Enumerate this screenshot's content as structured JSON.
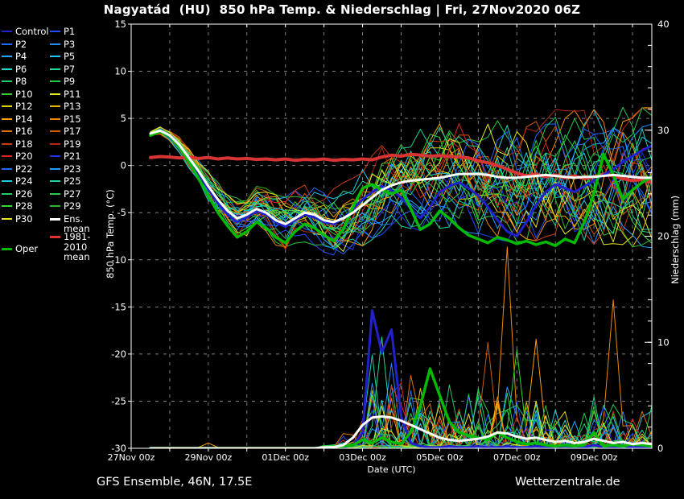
{
  "title": "Nagyatád  (HU)  850 hPa Temp. & Niederschlag | Fri, 27Nov2020 06Z",
  "footer": {
    "left": "GFS Ensemble, 46N, 17.5E",
    "right": "Wetterzentrale.de"
  },
  "axes": {
    "left": {
      "label": "850 hPa Temp. (°C)",
      "ticks": [
        15,
        10,
        5,
        0,
        -5,
        -10,
        -15,
        -20,
        -25,
        -30
      ],
      "range": [
        -30,
        15
      ]
    },
    "right": {
      "label": "Niederschlag (mm)",
      "ticks": [
        0,
        10,
        20,
        30,
        40
      ],
      "minor_step": 2,
      "range": [
        0,
        40
      ]
    },
    "x": {
      "label": "Date (UTC)",
      "tick_labels": [
        "27Nov 00z",
        "29Nov 00z",
        "01Dec 00z",
        "03Dec 00z",
        "05Dec 00z",
        "07Dec 00z",
        "09Dec 00z"
      ],
      "days_span": 13.5,
      "grid_every_days": 1,
      "label_every_days": 2
    }
  },
  "legend": {
    "columns": [
      [
        {
          "label": "Control",
          "color": "#2222cc"
        },
        {
          "label": "P2",
          "color": "#1f6aff"
        },
        {
          "label": "P4",
          "color": "#1fa8ff"
        },
        {
          "label": "P6",
          "color": "#1fd8c8"
        },
        {
          "label": "P8",
          "color": "#1fcc66"
        },
        {
          "label": "P10",
          "color": "#33cc33"
        },
        {
          "label": "P12",
          "color": "#d8d000"
        },
        {
          "label": "P14",
          "color": "#ff9f00"
        },
        {
          "label": "P16",
          "color": "#e07000"
        },
        {
          "label": "P18",
          "color": "#cc3c10"
        },
        {
          "label": "P20",
          "color": "#dd2222"
        },
        {
          "label": "P22",
          "color": "#1f6aff"
        },
        {
          "label": "P24",
          "color": "#1fcadd"
        },
        {
          "label": "P26",
          "color": "#22cc66"
        },
        {
          "label": "P28",
          "color": "#30d830"
        },
        {
          "label": "P30",
          "color": "#e8e820"
        },
        {
          "label": "Oper",
          "color": "#00bb00",
          "thick": true,
          "dy": 22
        }
      ],
      [
        {
          "label": "P1",
          "color": "#1f4fff"
        },
        {
          "label": "P3",
          "color": "#1f8cff"
        },
        {
          "label": "P5",
          "color": "#1fc8f0"
        },
        {
          "label": "P7",
          "color": "#1fd898"
        },
        {
          "label": "P9",
          "color": "#22cc44"
        },
        {
          "label": "P11",
          "color": "#e8e820"
        },
        {
          "label": "P13",
          "color": "#e8b400"
        },
        {
          "label": "P15",
          "color": "#f08800"
        },
        {
          "label": "P17",
          "color": "#cc5c00"
        },
        {
          "label": "P19",
          "color": "#b42814"
        },
        {
          "label": "P21",
          "color": "#2233ee"
        },
        {
          "label": "P23",
          "color": "#1f9fff"
        },
        {
          "label": "P25",
          "color": "#1fd0a0"
        },
        {
          "label": "P27",
          "color": "#28c848"
        },
        {
          "label": "P29",
          "color": "#28b828"
        },
        {
          "label": "Ens. mean",
          "color": "#ffffff",
          "thick": true
        },
        {
          "label": "1981-2010 mean",
          "color": "#e03030",
          "thick": true,
          "dy": 7,
          "wrap": true
        }
      ]
    ]
  },
  "chart_data": {
    "type": "line",
    "title": "Nagyatád (HU) 850 hPa Temp. & Niederschlag",
    "run": "Fri, 27Nov2020 06Z",
    "xlabel": "Date (UTC)",
    "ylabel_left": "850 hPa Temp. (°C)",
    "ylabel_right": "Niederschlag (mm)",
    "ylim_left": [
      -30,
      15
    ],
    "ylim_right": [
      0,
      40
    ],
    "grid": "dashed, every 5 °C horizontally and every 1 day vertically",
    "legend_position": "outside-left",
    "x_start_hour": 12,
    "x_step_hours": 6,
    "n_points": 53,
    "series": [
      {
        "name": "1981-2010 mean",
        "axis": "temp",
        "color": "#d93434",
        "width": 4,
        "values": [
          0.85,
          0.95,
          0.9,
          0.8,
          0.9,
          0.75,
          0.85,
          0.7,
          0.8,
          0.7,
          0.75,
          0.65,
          0.7,
          0.6,
          0.7,
          0.55,
          0.65,
          0.6,
          0.7,
          0.55,
          0.65,
          0.6,
          0.7,
          0.6,
          0.9,
          1.1,
          1.0,
          1.2,
          1.1,
          1.0,
          1.05,
          0.95,
          0.9,
          0.8,
          0.5,
          0.3,
          0.0,
          -0.4,
          -0.8,
          -1.1,
          -0.9,
          -1.2,
          -1.0,
          -1.3,
          -1.1,
          -1.4,
          -1.2,
          -0.9,
          -1.1,
          -1.4,
          -1.6,
          -1.5,
          -1.8
        ]
      },
      {
        "name": "Control temp",
        "axis": "temp",
        "color": "#2222cc",
        "width": 3,
        "values": [
          3.3,
          3.6,
          3.0,
          2.1,
          0.6,
          -0.9,
          -2.5,
          -4.0,
          -5.2,
          -6.0,
          -5.5,
          -4.8,
          -5.2,
          -6.0,
          -6.5,
          -5.8,
          -5.2,
          -5.5,
          -6.0,
          -6.2,
          -5.6,
          -4.6,
          -3.6,
          -2.8,
          -2.2,
          -2.6,
          -3.4,
          -4.6,
          -5.6,
          -4.4,
          -2.8,
          -2.2,
          -1.8,
          -2.4,
          -3.2,
          -4.4,
          -5.8,
          -7.0,
          -7.5,
          -6.0,
          -4.2,
          -2.8,
          -2.0,
          -2.4,
          -2.8,
          -2.2,
          -1.6,
          -1.0,
          -0.4,
          0.4,
          1.0,
          1.6,
          2.1
        ]
      },
      {
        "name": "Control precip",
        "axis": "precip",
        "color": "#2222cc",
        "width": 3,
        "values": [
          0,
          0,
          0,
          0,
          0,
          0,
          0,
          0,
          0,
          0,
          0,
          0,
          0,
          0,
          0,
          0,
          0,
          0,
          0,
          0,
          0.1,
          0.3,
          1.5,
          13.0,
          9.0,
          11.2,
          3.0,
          0.5,
          0.2,
          0.1,
          0.1,
          0.2,
          0.1,
          0.1,
          0.2,
          0.1,
          0.1,
          0.2,
          0.1,
          0.1,
          0.2,
          0.1,
          0.1,
          0.2,
          0.1,
          0.1,
          0.3,
          0.1,
          0.1,
          0.2,
          0.1,
          0.1,
          0.1
        ]
      },
      {
        "name": "Oper temp",
        "axis": "temp",
        "color": "#00bb00",
        "width": 3.5,
        "values": [
          3.2,
          3.6,
          3.1,
          2.0,
          0.4,
          -1.4,
          -3.2,
          -5.0,
          -6.4,
          -7.6,
          -7.0,
          -6.0,
          -6.6,
          -7.6,
          -8.2,
          -7.0,
          -6.2,
          -6.6,
          -7.4,
          -8.0,
          -6.8,
          -4.4,
          -2.4,
          -2.0,
          -2.6,
          -3.0,
          -2.6,
          -4.6,
          -6.8,
          -6.2,
          -4.8,
          -5.6,
          -6.6,
          -7.4,
          -7.8,
          -8.2,
          -7.6,
          -7.9,
          -8.3,
          -8.0,
          -8.4,
          -8.1,
          -8.5,
          -7.8,
          -8.2,
          -6.0,
          -3.0,
          1.2,
          -1.0,
          -3.6,
          -2.6,
          -1.8,
          -1.2
        ]
      },
      {
        "name": "Oper precip",
        "axis": "precip",
        "color": "#00bb00",
        "width": 3.5,
        "values": [
          0,
          0,
          0,
          0,
          0,
          0,
          0,
          0,
          0,
          0,
          0,
          0,
          0,
          0,
          0,
          0,
          0,
          0,
          0,
          0,
          0.2,
          0.3,
          0.8,
          0.5,
          1.0,
          0.6,
          0.4,
          1.5,
          4.0,
          7.5,
          5.0,
          2.5,
          1.5,
          1.2,
          1.0,
          0.8,
          1.5,
          1.0,
          0.6,
          0.4,
          0.5,
          0.3,
          0.2,
          0.3,
          0.2,
          0.3,
          1.5,
          0.2,
          0.3,
          0.2,
          0.4,
          0.3,
          0.2
        ]
      },
      {
        "name": "Ens. mean temp",
        "axis": "temp",
        "color": "#ffffff",
        "width": 3,
        "values": [
          3.4,
          3.7,
          3.2,
          2.2,
          0.8,
          -0.6,
          -2.2,
          -3.6,
          -4.8,
          -5.6,
          -5.2,
          -4.6,
          -5.0,
          -5.8,
          -6.2,
          -5.6,
          -5.0,
          -5.2,
          -5.8,
          -6.0,
          -5.6,
          -5.0,
          -4.2,
          -3.4,
          -2.6,
          -2.1,
          -1.8,
          -1.6,
          -1.5,
          -1.4,
          -1.3,
          -1.1,
          -0.9,
          -0.9,
          -0.9,
          -1.0,
          -1.2,
          -1.3,
          -1.3,
          -1.2,
          -1.1,
          -1.0,
          -1.1,
          -1.2,
          -1.3,
          -1.2,
          -1.2,
          -1.1,
          -1.0,
          -1.1,
          -1.2,
          -1.3,
          -1.3
        ]
      },
      {
        "name": "Ens. mean precip",
        "axis": "precip",
        "color": "#ffffff",
        "width": 3,
        "values": [
          0,
          0,
          0,
          0,
          0,
          0,
          0,
          0,
          0,
          0,
          0,
          0,
          0,
          0,
          0,
          0,
          0,
          0,
          0.1,
          0.1,
          0.3,
          1.0,
          2.2,
          2.9,
          3.0,
          2.9,
          2.6,
          2.2,
          1.8,
          1.4,
          1.0,
          0.8,
          0.7,
          0.8,
          0.9,
          1.1,
          1.5,
          1.4,
          1.1,
          0.9,
          1.0,
          0.8,
          0.6,
          0.7,
          0.5,
          0.6,
          0.9,
          0.7,
          0.5,
          0.6,
          0.4,
          0.5,
          0.4
        ]
      }
    ],
    "members": {
      "count": 30,
      "labels_prefix": "P",
      "palette": [
        "#1f4fff",
        "#1f6aff",
        "#1f8cff",
        "#1fa8ff",
        "#1fc8f0",
        "#1fd8c8",
        "#1fd898",
        "#1fcc66",
        "#22cc44",
        "#33cc33",
        "#e8e820",
        "#d8d000",
        "#e8b400",
        "#ff9f00",
        "#f08800",
        "#e07000",
        "#cc5c00",
        "#cc3c10",
        "#b42814",
        "#dd2222",
        "#2233ee",
        "#1f6aff",
        "#1f9fff",
        "#1fcadd",
        "#1fd0a0",
        "#22cc66",
        "#28c848",
        "#30d830",
        "#28b828",
        "#e8e820"
      ],
      "temp_spread": [
        0.3,
        0.35,
        0.45,
        0.6,
        0.8,
        1.0,
        1.2,
        1.35,
        1.5,
        1.6,
        1.7,
        1.8,
        1.9,
        2.0,
        2.1,
        2.2,
        2.3,
        2.4,
        2.5,
        2.6,
        2.8,
        3.0,
        3.2,
        3.3,
        3.5,
        3.6,
        3.8,
        3.9,
        4.0,
        4.2,
        4.3,
        4.4,
        4.5,
        4.6,
        4.7,
        4.8,
        4.9,
        5.0,
        5.0,
        5.1,
        5.1,
        5.2,
        5.2,
        5.2,
        5.3,
        5.3,
        5.3,
        5.4,
        5.4,
        5.4,
        5.5,
        5.5,
        5.5
      ],
      "precip_env": [
        0,
        0,
        0,
        0,
        0,
        0,
        0,
        0,
        0,
        0,
        0,
        0,
        0,
        0,
        0,
        0,
        0,
        0,
        0.3,
        0.5,
        1.5,
        3.0,
        5.0,
        7.0,
        8.0,
        7.5,
        6.5,
        6.0,
        6.0,
        5.5,
        5.0,
        4.5,
        4.0,
        4.5,
        5.0,
        5.0,
        5.5,
        5.0,
        4.5,
        4.5,
        5.0,
        4.5,
        4.0,
        4.0,
        3.5,
        4.0,
        4.5,
        4.0,
        3.5,
        3.5,
        3.0,
        4.0,
        4.5
      ],
      "extra_spikes": [
        {
          "p": 15,
          "i": 37,
          "v": 19.0
        },
        {
          "p": 17,
          "i": 35,
          "v": 10.0
        },
        {
          "p": 14,
          "i": 40,
          "v": 10.3
        },
        {
          "p": 15,
          "i": 48,
          "v": 14.0
        },
        {
          "p": 28,
          "i": 38,
          "v": 9.3
        },
        {
          "p": 7,
          "i": 24,
          "v": 10.5
        },
        {
          "p": 25,
          "i": 23,
          "v": 8.8
        },
        {
          "p": 3,
          "i": 25,
          "v": 8.0
        },
        {
          "p": 14,
          "i": 6,
          "v": 0.5
        }
      ]
    },
    "colors": {
      "background": "#000000",
      "grid": "#808080",
      "axis": "#ffffff"
    }
  }
}
